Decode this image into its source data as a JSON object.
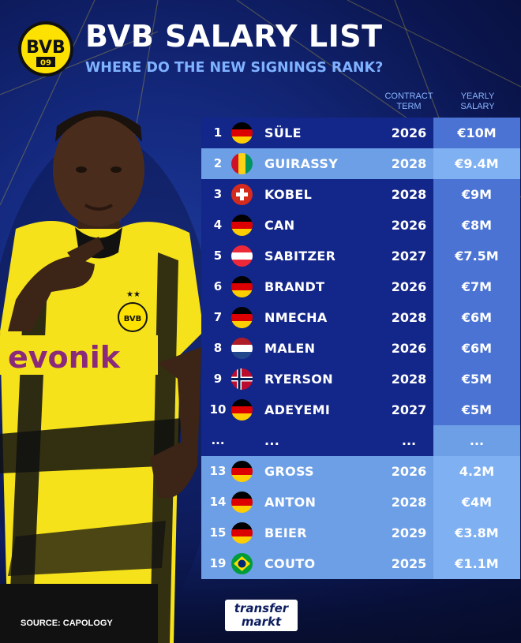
{
  "header": {
    "title": "BVB SALARY LIST",
    "subtitle": "WHERE DO THE NEW SIGNINGS RANK?",
    "logo_text": "BVB 09"
  },
  "columns": {
    "contract_term": "CONTRACT\nTERM",
    "yearly_salary": "YEARLY\nSALARY"
  },
  "rows": [
    {
      "rank": "1",
      "flag": "germany",
      "name": "SÜLE",
      "term": "2026",
      "salary": "€10M",
      "style": "dark"
    },
    {
      "rank": "2",
      "flag": "guinea",
      "name": "GUIRASSY",
      "term": "2028",
      "salary": "€9.4M",
      "style": "light"
    },
    {
      "rank": "3",
      "flag": "switzerland",
      "name": "KOBEL",
      "term": "2028",
      "salary": "€9M",
      "style": "dark"
    },
    {
      "rank": "4",
      "flag": "germany",
      "name": "CAN",
      "term": "2026",
      "salary": "€8M",
      "style": "dark"
    },
    {
      "rank": "5",
      "flag": "austria",
      "name": "SABITZER",
      "term": "2027",
      "salary": "€7.5M",
      "style": "dark"
    },
    {
      "rank": "6",
      "flag": "germany",
      "name": "BRANDT",
      "term": "2026",
      "salary": "€7M",
      "style": "dark"
    },
    {
      "rank": "7",
      "flag": "germany",
      "name": "NMECHA",
      "term": "2028",
      "salary": "€6M",
      "style": "dark"
    },
    {
      "rank": "8",
      "flag": "netherlands",
      "name": "MALEN",
      "term": "2026",
      "salary": "€6M",
      "style": "dark"
    },
    {
      "rank": "9",
      "flag": "norway",
      "name": "RYERSON",
      "term": "2028",
      "salary": "€5M",
      "style": "dark"
    },
    {
      "rank": "10",
      "flag": "germany",
      "name": "ADEYEMI",
      "term": "2027",
      "salary": "€5M",
      "style": "dark"
    },
    {
      "rank": "...",
      "flag": "",
      "name": "...",
      "term": "...",
      "salary": "...",
      "style": "ellipsis"
    },
    {
      "rank": "13",
      "flag": "germany",
      "name": "GROSS",
      "term": "2026",
      "salary": "4.2M",
      "style": "light"
    },
    {
      "rank": "14",
      "flag": "germany",
      "name": "ANTON",
      "term": "2028",
      "salary": "€4M",
      "style": "light"
    },
    {
      "rank": "15",
      "flag": "germany",
      "name": "BEIER",
      "term": "2029",
      "salary": "€3.8M",
      "style": "light"
    },
    {
      "rank": "19",
      "flag": "brazil",
      "name": "COUTO",
      "term": "2025",
      "salary": "€1.1M",
      "style": "light"
    }
  ],
  "footer": {
    "source": "SOURCE: CAPOLOGY",
    "brand_line1": "transfer",
    "brand_line2": "markt"
  },
  "player_shirt": {
    "sponsor": "evonik"
  },
  "colors": {
    "background": "#13277a",
    "row_dark": "#13268a",
    "row_light": "#6d9fe6",
    "salary_dark": "#4a73d3",
    "salary_light": "#7fb0f2",
    "subtitle": "#7fb2ff",
    "bvb_yellow": "#fde100"
  }
}
